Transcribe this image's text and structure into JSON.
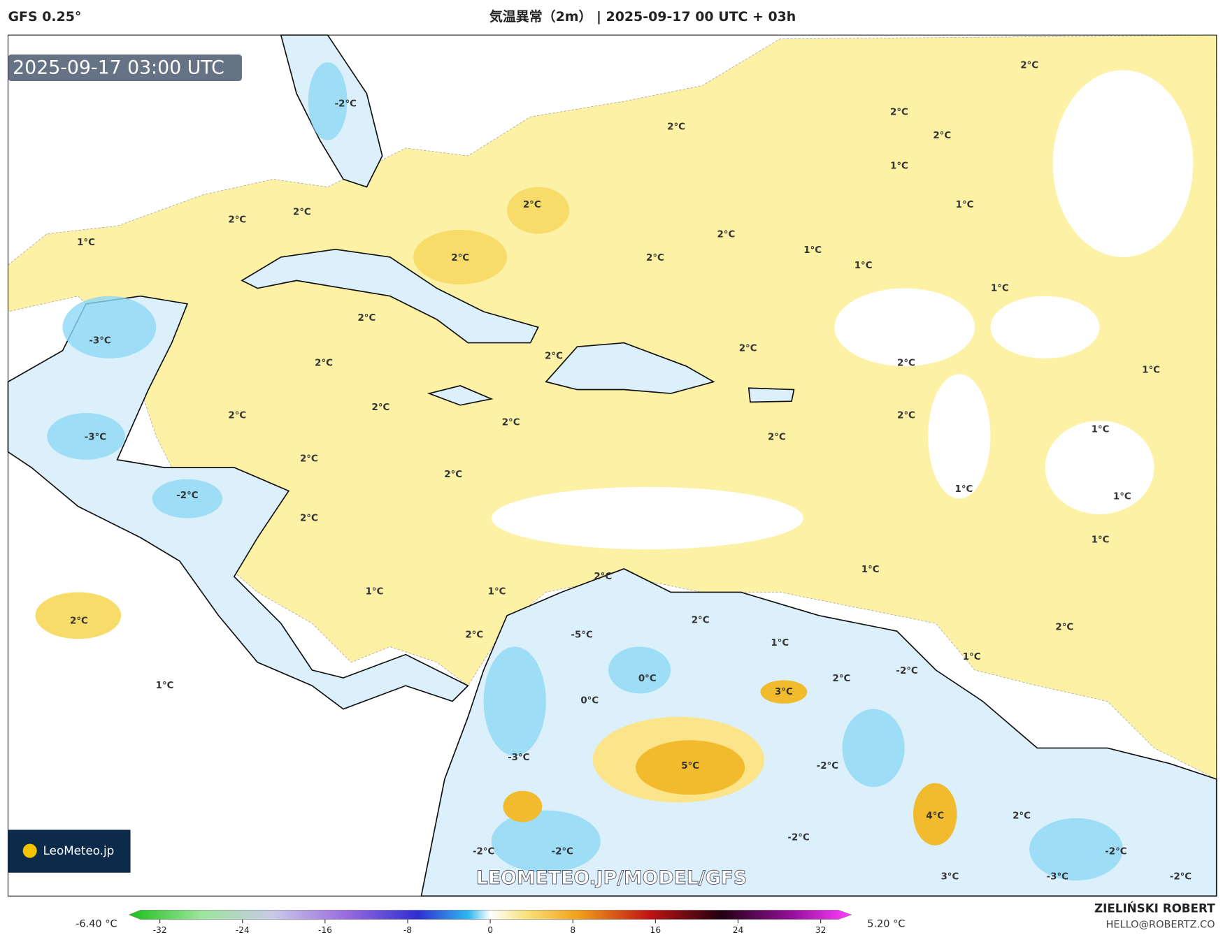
{
  "header": {
    "model": "GFS 0.25°",
    "title": "気温異常（2m） | 2025-09-17 00 UTC + 03h"
  },
  "timestamp": "2025-09-17 03:00 UTC",
  "map_labels": [
    "-2°C",
    "2°C",
    "2°C",
    "2°C",
    "2°C",
    "1°C",
    "1°C",
    "2°C",
    "2°C",
    "2°C",
    "1°C",
    "2°C",
    "2°C",
    "2°C",
    "1°C",
    "1°C",
    "1°C",
    "2°C",
    "-3°C",
    "2°C",
    "2°C",
    "2°C",
    "2°C",
    "1°C",
    "2°C",
    "2°C",
    "2°C",
    "-3°C",
    "2°C",
    "2°C",
    "1°C",
    "2°C",
    "2°C",
    "-2°C",
    "2°C",
    "1°C",
    "1°C",
    "1°C",
    "1°C",
    "1°C",
    "2°C",
    "1°C",
    "2°C",
    "2°C",
    "-5°C",
    "2°C",
    "1°C",
    "2°C",
    "1°C",
    "-2°C",
    "1°C",
    "0°C",
    "3°C",
    "2°C",
    "0°C",
    "-3°C",
    "5°C",
    "-2°C",
    "4°C",
    "2°C",
    "-2°C",
    "-2°C",
    "-2°C",
    "-2°C",
    "3°C",
    "-3°C",
    "-2°C"
  ],
  "logo": "LeoMeteo.jp",
  "watermark": "LEOMETEO.JP/MODEL/GFS",
  "credit": {
    "author": "ZIELIŃSKI ROBERT",
    "contact": "HELLO@ROBERTZ.CO"
  },
  "colorbar": {
    "min_label": "-6.40 °C",
    "max_label": "5.20 °C",
    "xlim": [
      -35,
      35
    ],
    "ticks": [
      -32,
      -24,
      -16,
      -8,
      0,
      8,
      16,
      24,
      32
    ]
  }
}
